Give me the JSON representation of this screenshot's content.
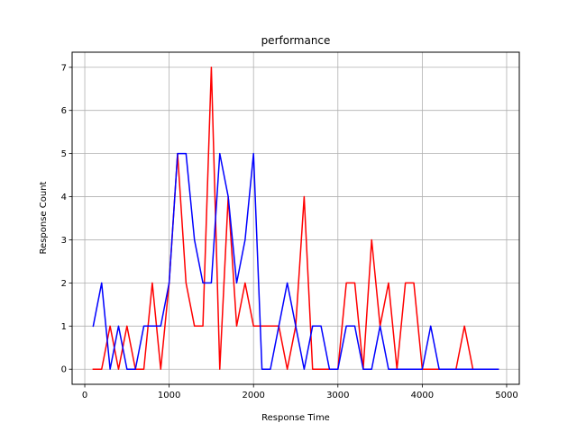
{
  "chart_data": {
    "type": "line",
    "title": "performance",
    "xlabel": "Response Time",
    "ylabel": "Response Count",
    "xlim": [
      -150,
      5150
    ],
    "ylim": [
      -0.35,
      7.35
    ],
    "xticks": [
      0,
      1000,
      2000,
      3000,
      4000,
      5000
    ],
    "yticks": [
      0,
      1,
      2,
      3,
      4,
      5,
      6,
      7
    ],
    "grid": true,
    "x": [
      100,
      200,
      300,
      400,
      500,
      600,
      700,
      800,
      900,
      1000,
      1100,
      1200,
      1300,
      1400,
      1500,
      1600,
      1700,
      1800,
      1900,
      2000,
      2100,
      2200,
      2300,
      2400,
      2500,
      2600,
      2700,
      2800,
      2900,
      3000,
      3100,
      3200,
      3300,
      3400,
      3500,
      3600,
      3700,
      3800,
      3900,
      4000,
      4100,
      4200,
      4300,
      4400,
      4500,
      4600,
      4700,
      4800,
      4900
    ],
    "series": [
      {
        "color": "#ff0000",
        "values": [
          0,
          0,
          1,
          0,
          1,
          0,
          0,
          2,
          0,
          2,
          5,
          2,
          1,
          1,
          7,
          0,
          4,
          1,
          2,
          1,
          1,
          1,
          1,
          0,
          1,
          4,
          0,
          0,
          0,
          0,
          2,
          2,
          0,
          3,
          1,
          2,
          0,
          2,
          2,
          0,
          0,
          0,
          0,
          0,
          1,
          0,
          0,
          0,
          0
        ]
      },
      {
        "color": "#0000ff",
        "values": [
          1,
          2,
          0,
          1,
          0,
          0,
          1,
          1,
          1,
          2,
          5,
          5,
          3,
          2,
          2,
          5,
          4,
          2,
          3,
          5,
          0,
          0,
          1,
          2,
          1,
          0,
          1,
          1,
          0,
          0,
          1,
          1,
          0,
          0,
          1,
          0,
          0,
          0,
          0,
          0,
          1,
          0,
          0,
          0,
          0,
          0,
          0,
          0,
          0
        ]
      }
    ]
  }
}
